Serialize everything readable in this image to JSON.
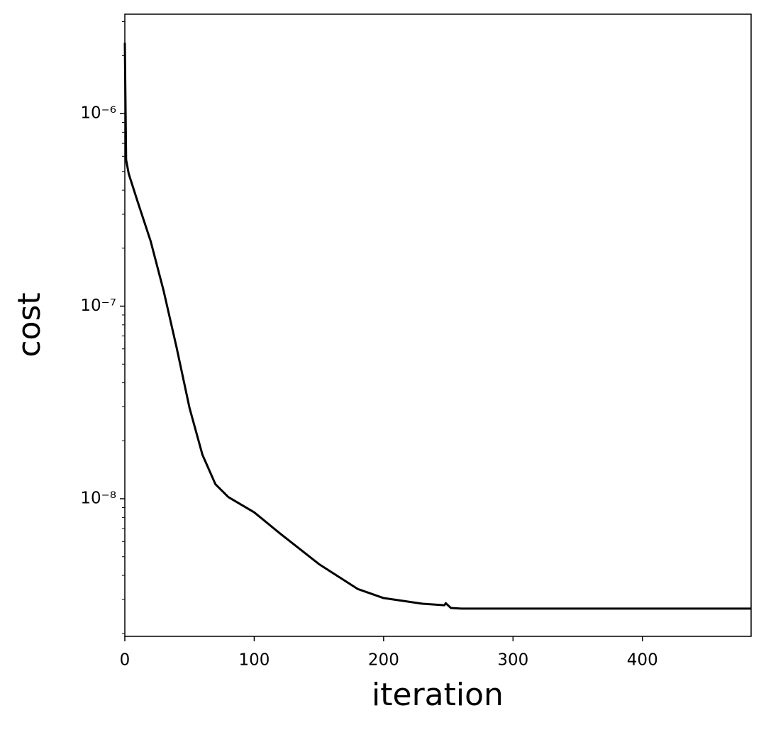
{
  "chart_data": {
    "type": "line",
    "xlabel": "iteration",
    "ylabel": "cost",
    "xlim": [
      0,
      484
    ],
    "xticks": [
      0,
      100,
      200,
      300,
      400
    ],
    "yscale": "log",
    "ylim": [
      1.93e-09,
      3.28e-06
    ],
    "yticks": [
      {
        "value": 1e-08,
        "label": "10⁻⁸"
      },
      {
        "value": 1e-07,
        "label": "10⁻⁷"
      },
      {
        "value": 1e-06,
        "label": "10⁻⁶"
      }
    ],
    "yticks_minor": [
      2e-09,
      3e-09,
      4e-09,
      5e-09,
      6e-09,
      7e-09,
      8e-09,
      9e-09,
      2e-08,
      3e-08,
      4e-08,
      5e-08,
      6e-08,
      7e-08,
      8e-08,
      9e-08,
      2e-07,
      3e-07,
      4e-07,
      5e-07,
      6e-07,
      7e-07,
      8e-07,
      9e-07,
      2e-06,
      3e-06
    ],
    "x": [
      0,
      1,
      3,
      10,
      20,
      30,
      40,
      50,
      60,
      70,
      80,
      100,
      120,
      150,
      180,
      200,
      230,
      247,
      248,
      252,
      260,
      484
    ],
    "series": [
      {
        "color": "#000000",
        "values": [
          2.33e-06,
          5.75e-07,
          4.87e-07,
          3.47e-07,
          2.17e-07,
          1.2e-07,
          6.1e-08,
          2.96e-08,
          1.69e-08,
          1.19e-08,
          1.02e-08,
          8.5e-09,
          6.6e-09,
          4.58e-09,
          3.4e-09,
          3.05e-09,
          2.85e-09,
          2.8e-09,
          2.87e-09,
          2.71e-09,
          2.69e-09,
          2.69e-09
        ]
      }
    ]
  }
}
